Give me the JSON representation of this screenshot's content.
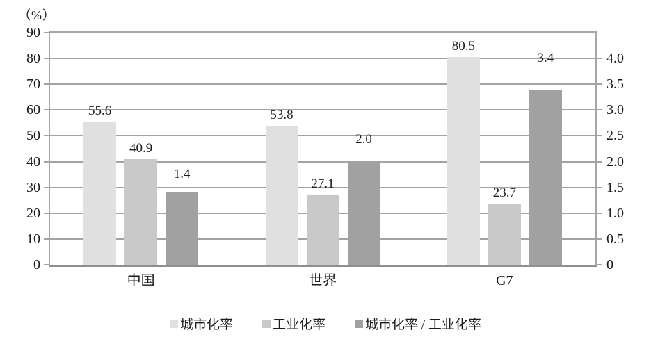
{
  "chart_data": {
    "type": "bar",
    "title": "",
    "unit_label": "（%）",
    "categories": [
      "中国",
      "世界",
      "G7"
    ],
    "series": [
      {
        "name": "城市化率",
        "axis": "left",
        "values": [
          55.6,
          53.8,
          80.5
        ],
        "labels": [
          "55.6",
          "53.8",
          "80.5"
        ],
        "color": "#e0e0e0"
      },
      {
        "name": "工业化率",
        "axis": "left",
        "values": [
          40.9,
          27.1,
          23.7
        ],
        "labels": [
          "40.9",
          "27.1",
          "23.7"
        ],
        "color": "#c9c9c9"
      },
      {
        "name": "城市化率 / 工业化率",
        "axis": "right",
        "values": [
          1.4,
          2.0,
          3.4
        ],
        "labels": [
          "1.4",
          "2.0",
          "3.4"
        ],
        "color": "#a1a1a1"
      }
    ],
    "left_axis": {
      "min": 0,
      "max": 90,
      "tick_labels": [
        "90",
        "80",
        "70",
        "60",
        "50",
        "40",
        "30",
        "20",
        "10",
        "0"
      ]
    },
    "right_axis": {
      "min": 0,
      "max": 4.0,
      "tick_labels": [
        "4.0",
        "3.5",
        "3.0",
        "2.5",
        "2.0",
        "1.5",
        "1.0",
        "0.5",
        "0"
      ],
      "top_aligns_with_left_value": 80
    },
    "grid": true,
    "legend_position": "bottom",
    "colors": {
      "grid": "#a3a3a3",
      "border": "#a6a6a6",
      "axis_line": "#8f8f8f",
      "text": "#1c1c1c",
      "background": "#ffffff"
    }
  }
}
